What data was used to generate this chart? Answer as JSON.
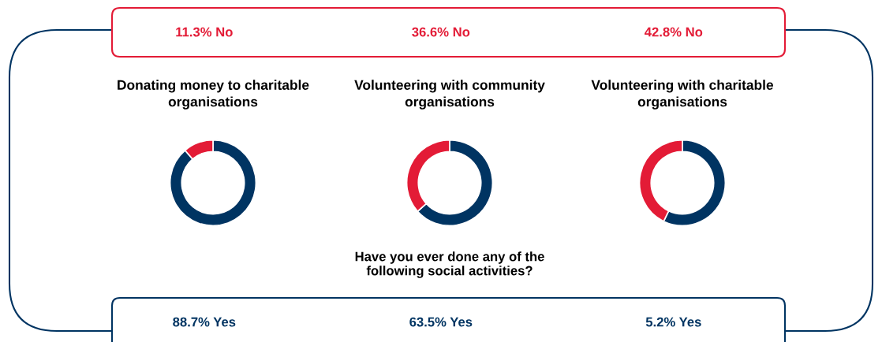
{
  "chart_data": [
    {
      "type": "donut",
      "title": "Donating money to charitable organisations",
      "categories": [
        null,
        null
      ],
      "values": [
        88.7,
        11.3
      ],
      "colors": [
        "#003462",
        "#e31b36"
      ],
      "annotations": [
        "11.3% No",
        "88.7% Yes"
      ]
    },
    {
      "type": "donut",
      "title": "Volunteering with community organisations",
      "categories": [
        null,
        null
      ],
      "values": [
        63.4,
        36.6
      ],
      "colors": [
        "#003462",
        "#e31b36"
      ],
      "annotations": [
        "36.6% No",
        "63.5% Yes",
        "Have you ever done any of the following social activities?"
      ]
    },
    {
      "type": "donut",
      "title": "Volunteering with charitable organisations",
      "categories": [
        null,
        null
      ],
      "values": [
        57.2,
        42.8
      ],
      "colors": [
        "#003462",
        "#e31b36"
      ],
      "annotations": [
        "42.8% No",
        "5.2% Yes"
      ]
    }
  ]
}
